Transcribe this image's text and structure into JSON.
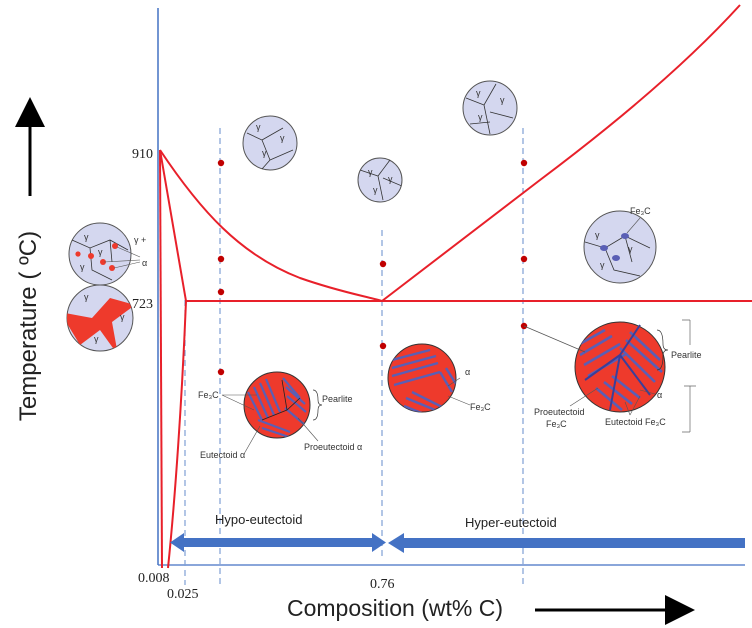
{
  "axes": {
    "y_label": "Temperature ( ºC)",
    "x_label": "Composition (wt% C)",
    "y_ticks": [
      "910",
      "723"
    ],
    "x_ticks": [
      "0.008",
      "0.025",
      "0.76"
    ]
  },
  "regions": {
    "hypo": "Hypo-eutectoid",
    "hyper": "Hyper-eutectoid"
  },
  "grain_labels": {
    "gamma": "γ",
    "gamma_plus": "γ +",
    "alpha": "α"
  },
  "micro_labels": {
    "pearlite": "Pearlite",
    "fe3c": "Fe₃C",
    "eutectoid_alpha": "Eutectoid α",
    "proeutectoid_alpha": "Proeutectoid α",
    "proeutectoid_fe3c_1": "Proeutectoid",
    "proeutectoid_fe3c_2": "Fe₃C",
    "eutectoid_fe3c": "Eutectoid Fe₃C"
  },
  "colors": {
    "phase_line": "#e8202a",
    "axis": "#4472c4",
    "guide": "#7f9fd4",
    "arrow": "#4472c4",
    "grain_fill": "#d4d7ef",
    "pearlite_red": "#ee3a2c",
    "pearlite_blue": "#5a5fb5",
    "point": "#c00000"
  }
}
